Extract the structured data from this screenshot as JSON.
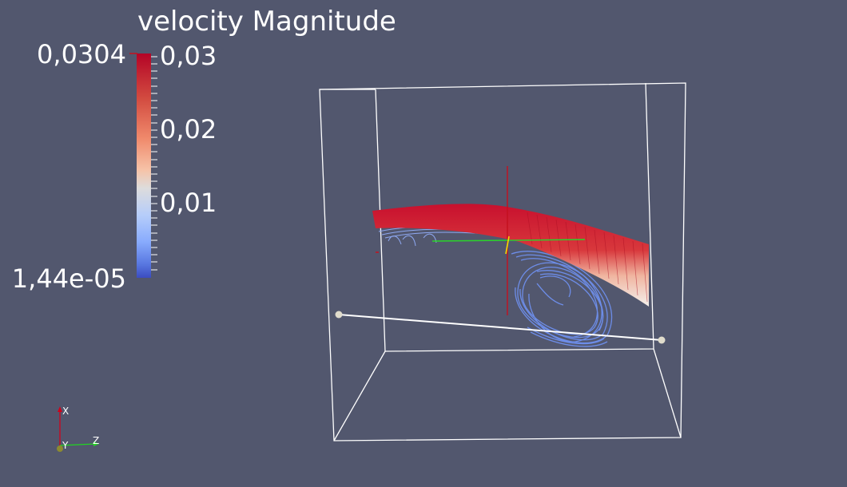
{
  "legend": {
    "title": "velocity Magnitude",
    "range_max": "0,0304",
    "range_min": "1,44e-05",
    "ticks": [
      "0,03",
      "0,02",
      "0,01"
    ]
  },
  "orientation_axes": {
    "x_label": "X",
    "y_label": "Y",
    "z_label": "Z"
  },
  "colors": {
    "background": "#52576e",
    "colormap_high": "#b40426",
    "colormap_mid": "#dddcdc",
    "colormap_low": "#3b4cc0",
    "axis_x": "#d0021b",
    "axis_y": "#f5e000",
    "axis_z": "#22d422"
  }
}
